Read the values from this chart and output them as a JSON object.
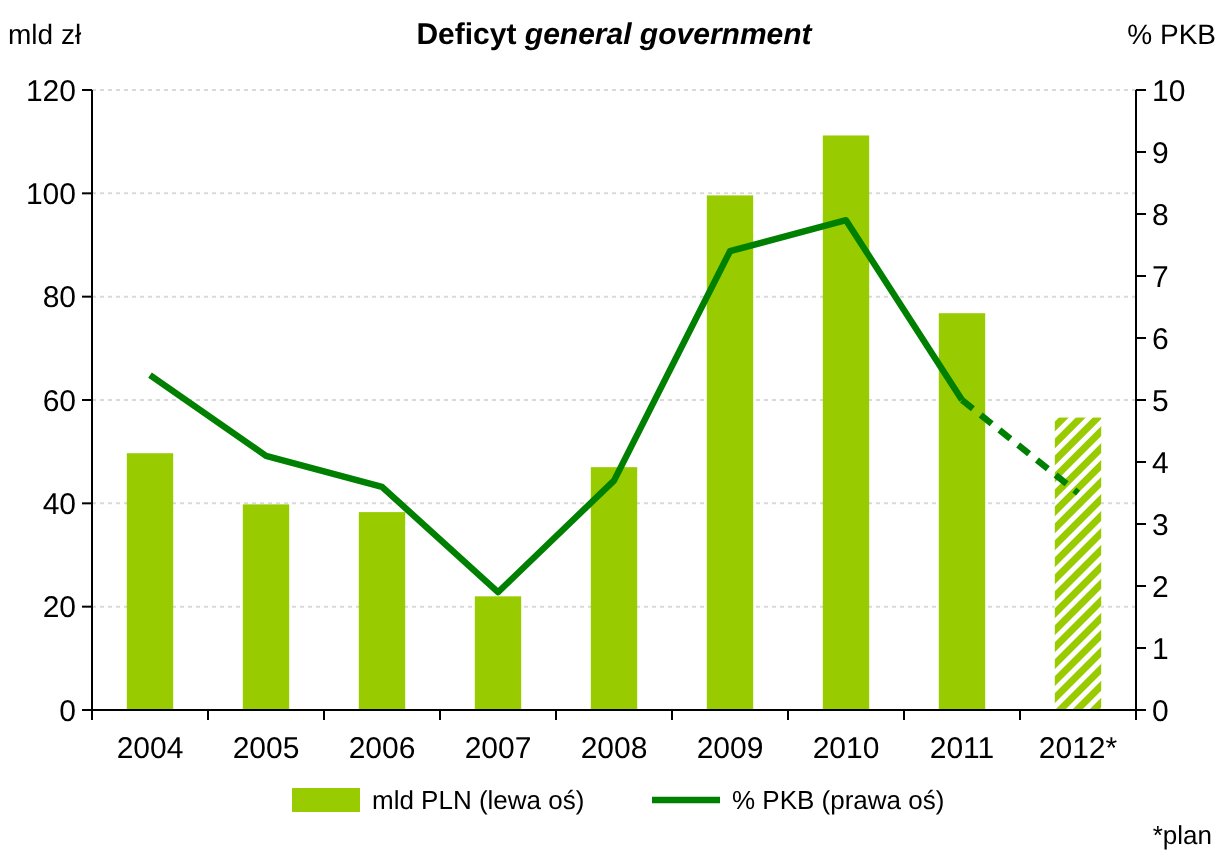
{
  "chart_data": {
    "type": "bar",
    "title": "Deficyt general government",
    "ylabel": "mld zł",
    "y2label": "% PKB",
    "categories": [
      "2004",
      "2005",
      "2006",
      "2007",
      "2008",
      "2009",
      "2010",
      "2011",
      "2012*"
    ],
    "series": [
      {
        "name": "mld PLN (lewa oś)",
        "color": "#99cc00",
        "values": [
          49.7,
          39.8,
          38.3,
          22.0,
          47.0,
          99.6,
          111.2,
          76.8,
          null
        ]
      },
      {
        "color": "#99cc00",
        "values": [
          null,
          null,
          null,
          null,
          null,
          null,
          null,
          null,
          56.6
        ]
      },
      {
        "type": "line",
        "axis": "y2",
        "name": "% PKB (prawa oś)",
        "color": "#008000",
        "line_style": "solid",
        "values": [
          5.4,
          4.1,
          3.6,
          1.9,
          3.7,
          7.4,
          7.9,
          5.0,
          null
        ]
      },
      {
        "type": "line",
        "axis": "y2",
        "color": "#008000",
        "line_style": "dashed",
        "values": [
          null,
          null,
          null,
          null,
          null,
          null,
          null,
          5.0,
          3.5
        ]
      }
    ],
    "ylim": [
      0,
      120
    ],
    "yticks": [
      0,
      20,
      40,
      60,
      80,
      100,
      120
    ],
    "y2lim": [
      0,
      10
    ],
    "y2ticks": [
      0,
      1,
      2,
      3,
      4,
      5,
      6,
      7,
      8,
      9,
      10
    ],
    "grid": "y",
    "legend": "bottom",
    "annotations": [
      "*plan"
    ]
  }
}
